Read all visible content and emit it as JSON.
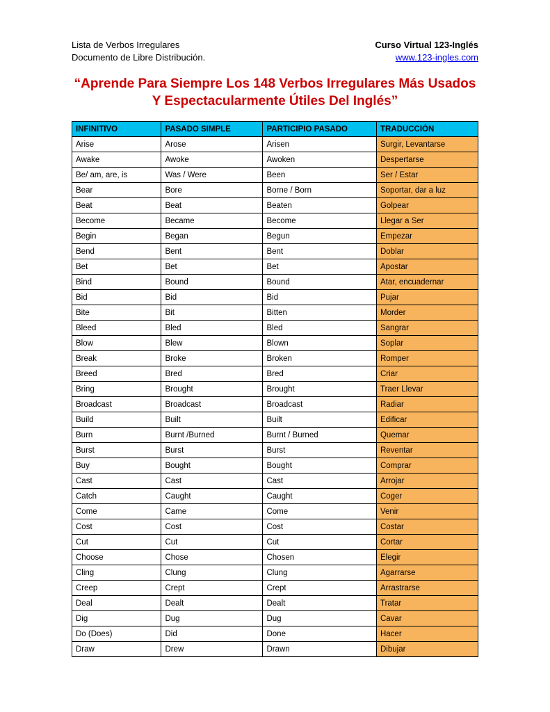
{
  "header": {
    "left_line1": "Lista de Verbos Irregulares",
    "left_line2": "Documento de Libre Distribución.",
    "right_line1": "Curso Virtual 123-Inglés",
    "right_link": "www.123-ingles.com"
  },
  "title": "“Aprende Para Siempre Los 148 Verbos Irregulares Más Usados Y Espectacularmente Útiles Del Inglés”",
  "columns": [
    "INFINITIVO",
    "PASADO SIMPLE",
    "PARTICIPIO PASADO",
    "TRADUCCIÓN"
  ],
  "rows": [
    [
      "Arise",
      "Arose",
      "Arisen",
      "Surgir, Levantarse"
    ],
    [
      "Awake",
      "Awoke",
      "Awoken",
      "Despertarse"
    ],
    [
      "Be/ am, are, is",
      "Was / Were",
      "Been",
      "Ser / Estar"
    ],
    [
      "Bear",
      "Bore",
      "Borne / Born",
      "Soportar, dar a luz"
    ],
    [
      "Beat",
      "Beat",
      "Beaten",
      "Golpear"
    ],
    [
      "Become",
      "Became",
      "Become",
      "Llegar a Ser"
    ],
    [
      "Begin",
      "Began",
      "Begun",
      "Empezar"
    ],
    [
      "Bend",
      "Bent",
      "Bent",
      "Doblar"
    ],
    [
      "Bet",
      "Bet",
      "Bet",
      "Apostar"
    ],
    [
      "Bind",
      "Bound",
      "Bound",
      "Atar, encuadernar"
    ],
    [
      "Bid",
      "Bid",
      "Bid",
      "Pujar"
    ],
    [
      "Bite",
      "Bit",
      "Bitten",
      "Morder"
    ],
    [
      "Bleed",
      "Bled",
      "Bled",
      "Sangrar"
    ],
    [
      "Blow",
      "Blew",
      "Blown",
      "Soplar"
    ],
    [
      "Break",
      "Broke",
      "Broken",
      "Romper"
    ],
    [
      "Breed",
      "Bred",
      "Bred",
      "Criar"
    ],
    [
      "Bring",
      "Brought",
      "Brought",
      "Traer Llevar"
    ],
    [
      "Broadcast",
      "Broadcast",
      "Broadcast",
      "Radiar"
    ],
    [
      "Build",
      "Built",
      "Built",
      "Edificar"
    ],
    [
      "Burn",
      "Burnt /Burned",
      "Burnt / Burned",
      "Quemar"
    ],
    [
      "Burst",
      "Burst",
      "Burst",
      "Reventar"
    ],
    [
      "Buy",
      "Bought",
      "Bought",
      "Comprar"
    ],
    [
      "Cast",
      "Cast",
      "Cast",
      "Arrojar"
    ],
    [
      "Catch",
      "Caught",
      "Caught",
      "Coger"
    ],
    [
      "Come",
      "Came",
      "Come",
      "Venir"
    ],
    [
      "Cost",
      "Cost",
      "Cost",
      "Costar"
    ],
    [
      "Cut",
      "Cut",
      "Cut",
      "Cortar"
    ],
    [
      "Choose",
      "Chose",
      "Chosen",
      "Elegir"
    ],
    [
      "Cling",
      "Clung",
      "Clung",
      "Agarrarse"
    ],
    [
      "Creep",
      "Crept",
      "Crept",
      "Arrastrarse"
    ],
    [
      "Deal",
      "Dealt",
      "Dealt",
      "Tratar"
    ],
    [
      "Dig",
      "Dug",
      "Dug",
      "Cavar"
    ],
    [
      "Do (Does)",
      "Did",
      "Done",
      "Hacer"
    ],
    [
      "Draw",
      "Drew",
      "Drawn",
      "Dibujar"
    ]
  ],
  "colors": {
    "title": "#cc0000",
    "header_bg": "#00c0f0",
    "translation_bg": "#f8b45c",
    "border": "#000000",
    "link": "#0000ee",
    "text": "#000000"
  }
}
